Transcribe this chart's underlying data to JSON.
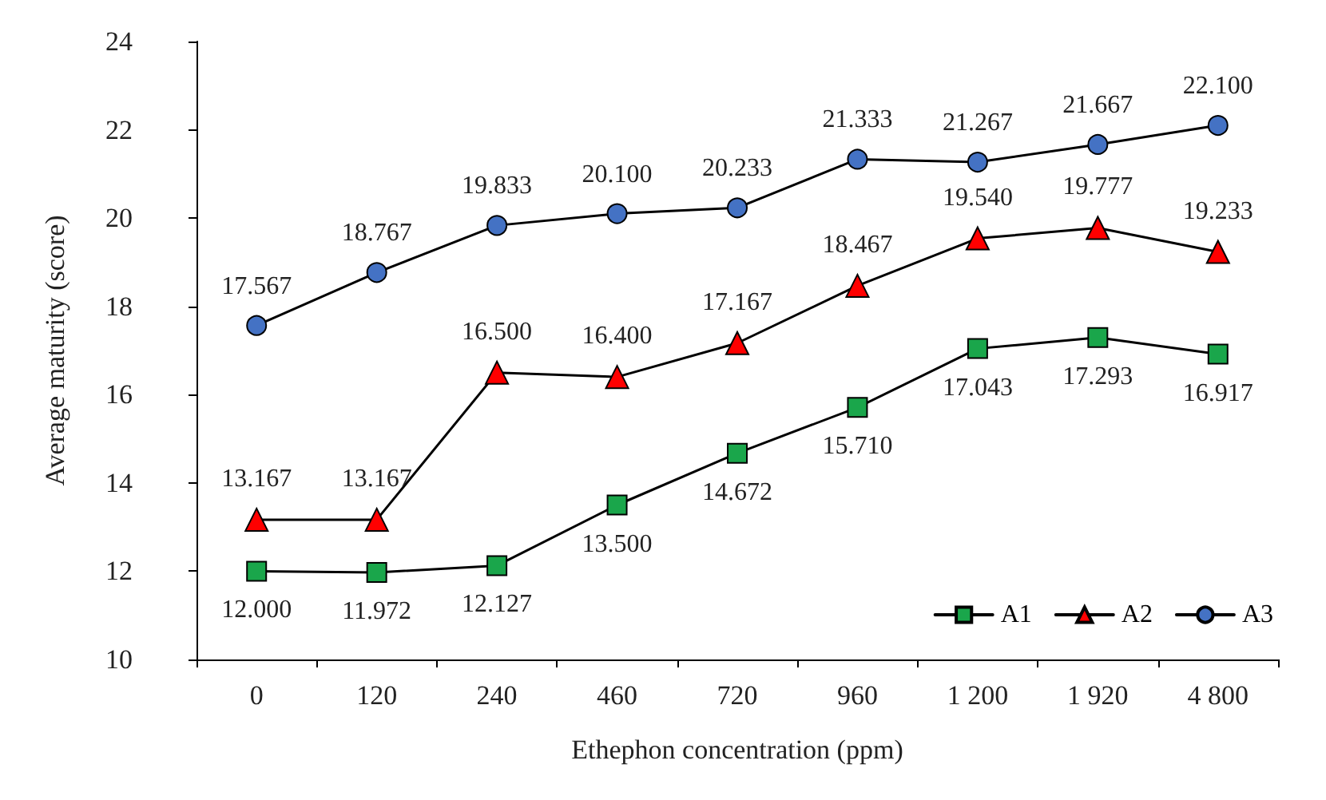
{
  "chart_data": {
    "type": "line",
    "xlabel": "Ethephon concentration (ppm)",
    "ylabel": "Average maturity (score)",
    "categories": [
      "0",
      "120",
      "240",
      "460",
      "720",
      "960",
      "1 200",
      "1 920",
      "4 800"
    ],
    "series": [
      {
        "name": "A1",
        "color": "#1aa64b",
        "marker": "square",
        "values": [
          12.0,
          11.972,
          12.127,
          13.5,
          14.672,
          15.71,
          17.043,
          17.293,
          16.917
        ],
        "value_labels": [
          "12.000",
          "11.972",
          "12.127",
          "13.500",
          "14.672",
          "15.710",
          "17.043",
          "17.293",
          "16.917"
        ]
      },
      {
        "name": "A2",
        "color": "#ff0000",
        "marker": "triangle",
        "values": [
          13.167,
          13.167,
          16.5,
          16.4,
          17.167,
          18.467,
          19.54,
          19.777,
          19.233
        ],
        "value_labels": [
          "13.167",
          "13.167",
          "16.500",
          "16.400",
          "17.167",
          "18.467",
          "19.540",
          "19.777",
          "19.233"
        ]
      },
      {
        "name": "A3",
        "color": "#4472c4",
        "marker": "circle",
        "values": [
          17.567,
          18.767,
          19.833,
          20.1,
          20.233,
          21.333,
          21.267,
          21.667,
          22.1
        ],
        "value_labels": [
          "17.567",
          "18.767",
          "19.833",
          "20.100",
          "20.233",
          "21.333",
          "21.267",
          "21.667",
          "22.100"
        ]
      }
    ],
    "ylim": [
      10,
      24
    ],
    "yticks": [
      10,
      12,
      14,
      16,
      18,
      20,
      22,
      24
    ],
    "grid": false,
    "legend": "bottom right",
    "line_style": "solid"
  }
}
